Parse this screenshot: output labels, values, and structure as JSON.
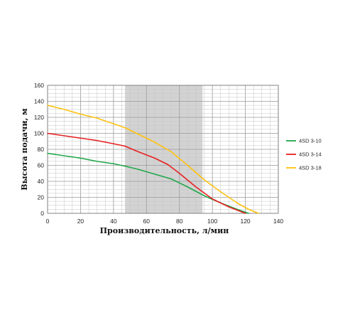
{
  "chart_data": {
    "type": "line",
    "title": "",
    "xlabel": "Производительность, л/мин",
    "ylabel": "Высота подачи, м",
    "xlim": [
      0,
      140
    ],
    "ylim": [
      0,
      160
    ],
    "xticks": [
      0,
      20,
      40,
      60,
      80,
      100,
      120,
      140
    ],
    "yticks": [
      0,
      20,
      40,
      60,
      80,
      100,
      120,
      140,
      160
    ],
    "grid": true,
    "legend_position": "right",
    "highlight_band": {
      "x_from": 47,
      "x_to": 94,
      "color": "#d3d3d3"
    },
    "series": [
      {
        "name": "4SD 3-10",
        "color": "#1fa84a",
        "x": [
          0,
          10,
          20,
          30,
          40,
          47,
          55,
          65,
          75,
          85,
          95,
          105,
          115,
          122
        ],
        "y": [
          75,
          72,
          69,
          65,
          62,
          59,
          55,
          49,
          43,
          33,
          22,
          13,
          5,
          0
        ]
      },
      {
        "name": "4SD 3-14",
        "color": "#e82020",
        "x": [
          0,
          10,
          20,
          30,
          40,
          47,
          55,
          65,
          73,
          80,
          90,
          100,
          110,
          120
        ],
        "y": [
          100,
          97,
          94,
          91,
          87,
          84,
          77,
          69,
          61,
          50,
          33,
          18,
          8,
          0
        ]
      },
      {
        "name": "4SD 3-18",
        "color": "#ffc20e",
        "x": [
          0,
          10,
          20,
          30,
          40,
          47,
          55,
          65,
          75,
          85,
          95,
          105,
          115,
          122,
          128
        ],
        "y": [
          135,
          130,
          124,
          119,
          112,
          107,
          99,
          89,
          77,
          60,
          42,
          27,
          13,
          5,
          0
        ]
      }
    ]
  }
}
